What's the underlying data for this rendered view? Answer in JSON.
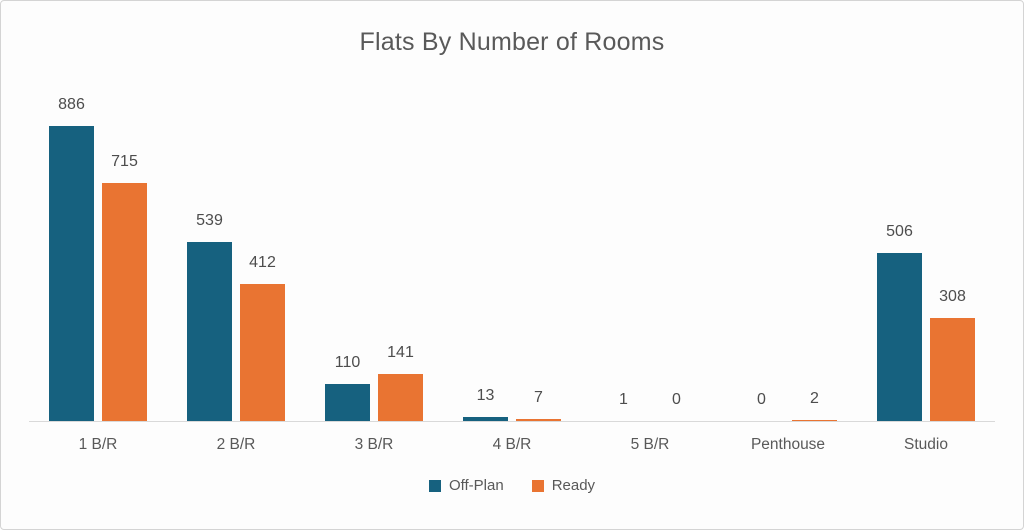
{
  "chart_data": {
    "type": "bar",
    "title": "Flats By Number of Rooms",
    "categories": [
      "1 B/R",
      "2 B/R",
      "3 B/R",
      "4 B/R",
      "5 B/R",
      "Penthouse",
      "Studio"
    ],
    "series": [
      {
        "name": "Off-Plan",
        "color": "#16617F",
        "values": [
          886,
          539,
          110,
          13,
          1,
          0,
          506
        ]
      },
      {
        "name": "Ready",
        "color": "#E97432",
        "values": [
          715,
          412,
          141,
          7,
          0,
          2,
          308
        ]
      }
    ],
    "xlabel": "",
    "ylabel": "",
    "ylim": [
      0,
      886
    ],
    "grid": false,
    "y_axis_visible": false,
    "legend_position": "bottom"
  },
  "colors": {
    "off_plan": "#16617F",
    "ready": "#E97432",
    "title_text": "#595959",
    "label_text": "#4D4D4D",
    "axis_line": "#D9D9D9",
    "frame_border": "#D4D4D4",
    "background": "#FDFDFD"
  }
}
